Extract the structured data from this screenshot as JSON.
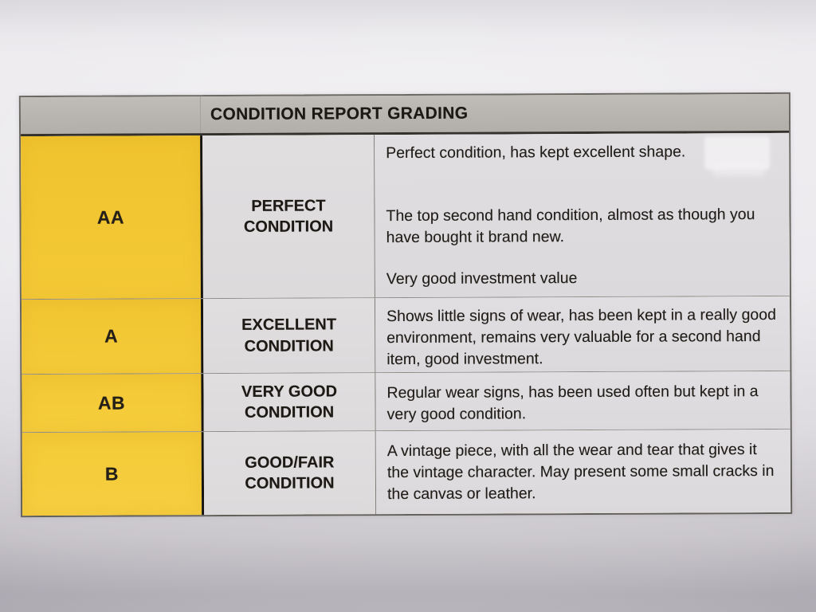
{
  "document": {
    "header": {
      "title": "CONDITION REPORT GRADING"
    },
    "rows": [
      {
        "grade": "AA",
        "condition": "PERFECT CONDITION",
        "paragraphs": [
          "Perfect condition, has kept excellent shape.",
          "The top second hand condition, almost as though you have bought it brand new.",
          "Very good investment value"
        ]
      },
      {
        "grade": "A",
        "condition": "EXCELLENT CONDITION",
        "paragraphs": [
          "Shows little signs of wear, has been kept in a really good environment, remains very valuable for a second hand item, good investment."
        ]
      },
      {
        "grade": "AB",
        "condition": "VERY GOOD CONDITION",
        "paragraphs": [
          "Regular wear signs, has been used often but kept in a very good condition."
        ]
      },
      {
        "grade": "B",
        "condition": "GOOD/FAIR CONDITION",
        "paragraphs": [
          "A vintage piece, with all the wear and tear that gives it the vintage character. May present some small cracks in the canvas or leather."
        ]
      }
    ],
    "colors": {
      "grade_column": "#f3c735",
      "header_row": "#b8b4af",
      "cell_background": "#dedcdd",
      "border_dark": "#17140f",
      "text": "#1d1a16",
      "page_background": "#e9e7eb"
    }
  }
}
